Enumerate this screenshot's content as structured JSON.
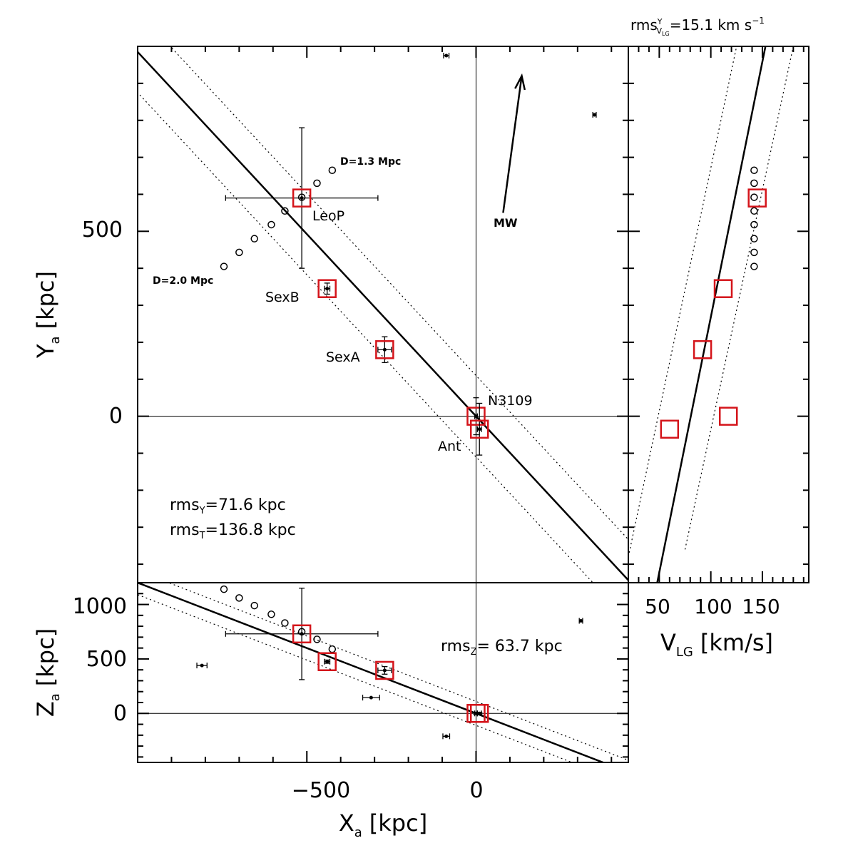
{
  "chart_data": [
    {
      "panel": "xy",
      "type": "scatter",
      "title": "",
      "xlabel": "X",
      "xlabel_sub": "a",
      "xlabel_unit": "[kpc]",
      "ylabel": "Y",
      "ylabel_sub": "a",
      "ylabel_unit": "[kpc]",
      "xlim": [
        -1000,
        450
      ],
      "ylim": [
        -450,
        1000
      ],
      "y_ticklabels": [
        {
          "value": 500,
          "label": "500"
        },
        {
          "value": 0,
          "label": "0"
        }
      ],
      "galaxies": [
        {
          "name": "LeoP",
          "x": -515,
          "y": 590,
          "xerr": 225,
          "yerr": 190
        },
        {
          "name": "SexB",
          "x": -440,
          "y": 345,
          "xerr": 8,
          "yerr": 15
        },
        {
          "name": "SexA",
          "x": -270,
          "y": 180,
          "xerr": 20,
          "yerr": 35
        },
        {
          "name": "N3109",
          "x": 0,
          "y": 0,
          "xerr": 4,
          "yerr": 50
        },
        {
          "name": "Ant",
          "x": 10,
          "y": -35,
          "xerr": 6,
          "yerr": 70
        }
      ],
      "other_points": [
        {
          "x": -88,
          "y": 975,
          "xerr": 8
        },
        {
          "x": 350,
          "y": 815,
          "xerr": 5
        }
      ],
      "distance_track": {
        "points": [
          [
            -745,
            405
          ],
          [
            -700,
            443
          ],
          [
            -655,
            480
          ],
          [
            -605,
            518
          ],
          [
            -565,
            555
          ],
          [
            -515,
            592
          ],
          [
            -470,
            630
          ],
          [
            -425,
            665
          ]
        ],
        "start_label": "D=2.0 Mpc",
        "end_label": "D=1.3 Mpc"
      },
      "fit_line": {
        "slope": -0.985,
        "intercept": 0
      },
      "band_offsets": [
        110,
        -110
      ],
      "mw_arrow": {
        "from": [
          80,
          550
        ],
        "to": [
          135,
          920
        ],
        "label": "MW"
      },
      "annotations": [
        {
          "label": "rms",
          "sub": "Y",
          "rest": "=71.6 kpc"
        },
        {
          "label": "rms",
          "sub": "T",
          "rest": "=136.8 kpc"
        }
      ]
    },
    {
      "panel": "xz",
      "type": "scatter",
      "xlabel": "X",
      "xlabel_sub": "a",
      "xlabel_unit": "[kpc]",
      "ylabel": "Z",
      "ylabel_sub": "a",
      "ylabel_unit": "[kpc]",
      "xlim": [
        -1000,
        450
      ],
      "ylim": [
        -450,
        1200
      ],
      "x_ticklabels": [
        {
          "value": -500,
          "label": "−500"
        },
        {
          "value": 0,
          "label": "0"
        }
      ],
      "y_ticklabels": [
        {
          "value": 1000,
          "label": "1000"
        },
        {
          "value": 500,
          "label": "500"
        },
        {
          "value": 0,
          "label": "0"
        }
      ],
      "galaxies": [
        {
          "name": "LeoP",
          "x": -515,
          "y": 730,
          "xerr": 225,
          "yerr": 420
        },
        {
          "name": "SexB",
          "x": -440,
          "y": 475,
          "xerr": 8,
          "yerr": 15
        },
        {
          "name": "SexA",
          "x": -270,
          "y": 395,
          "xerr": 20,
          "yerr": 35
        },
        {
          "name": "N3109",
          "x": 0,
          "y": 0,
          "xerr": 4,
          "yerr": 10
        },
        {
          "name": "Ant",
          "x": 10,
          "y": 0,
          "xerr": 6,
          "yerr": 10
        }
      ],
      "other_points": [
        {
          "x": -810,
          "y": 440,
          "xerr": 15
        },
        {
          "x": -310,
          "y": 145,
          "xerr": 25
        },
        {
          "x": -88,
          "y": -210,
          "xerr": 10
        },
        {
          "x": 310,
          "y": 850,
          "xerr": 5
        }
      ],
      "distance_track": {
        "points": [
          [
            -745,
            1140
          ],
          [
            -700,
            1060
          ],
          [
            -655,
            990
          ],
          [
            -605,
            910
          ],
          [
            -565,
            830
          ],
          [
            -515,
            750
          ],
          [
            -470,
            680
          ],
          [
            -425,
            590
          ]
        ]
      },
      "fit_line": {
        "slope": -1.2,
        "intercept": 0
      },
      "band_offsets": [
        110,
        -110
      ],
      "annotations": [
        {
          "label": "rms",
          "sub": "Z",
          "rest": "= 63.7 kpc"
        }
      ]
    },
    {
      "panel": "vy",
      "type": "scatter",
      "xlabel": "V",
      "xlabel_sub": "LG",
      "xlabel_unit": "[km/s]",
      "xlim": [
        20,
        195
      ],
      "ylim": [
        -450,
        1000
      ],
      "x_ticklabels": [
        {
          "value": 50,
          "label": "50"
        },
        {
          "value": 100,
          "label": "100"
        },
        {
          "value": 150,
          "label": "150"
        }
      ],
      "galaxies": [
        {
          "name": "LeoP",
          "v": 145,
          "y": 590
        },
        {
          "name": "SexB",
          "v": 112,
          "y": 345
        },
        {
          "name": "SexA",
          "v": 92,
          "y": 180
        },
        {
          "name": "N3109",
          "v": 117,
          "y": 0
        },
        {
          "name": "Ant",
          "v": 60,
          "y": -35
        }
      ],
      "distance_track_v": [
        [
          142,
          665
        ],
        [
          142,
          630
        ],
        [
          142,
          592
        ],
        [
          142,
          555
        ],
        [
          142,
          518
        ],
        [
          142,
          480
        ],
        [
          142,
          443
        ],
        [
          142,
          405
        ]
      ],
      "fit_line_v": [
        [
          48,
          -450
        ],
        [
          153,
          1000
        ]
      ],
      "band_lines_v": [
        [
          [
            20,
            -380
          ],
          [
            125,
            1000
          ]
        ],
        [
          [
            75,
            -360
          ],
          [
            180,
            1000
          ]
        ]
      ],
      "annotation": {
        "label": "rms",
        "sup": "Y",
        "sub": "V",
        "subsub": "LG",
        "rest": "=15.1 km s",
        "exp": "−1"
      }
    }
  ]
}
